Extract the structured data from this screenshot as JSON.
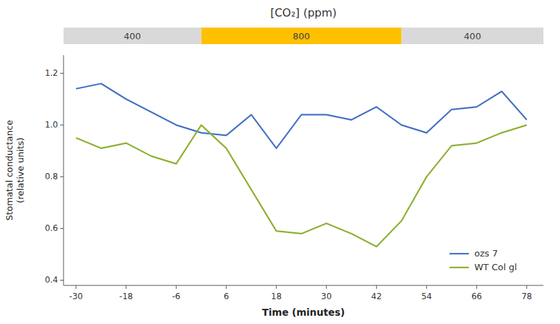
{
  "chart_data": {
    "type": "line",
    "title": "[CO₂] (ppm)",
    "x_label": "Time (minutes)",
    "y_label": "Stomatal conductance\n(relative units)",
    "x": [
      -30,
      -24,
      -18,
      -12,
      -6,
      0,
      6,
      12,
      18,
      24,
      30,
      36,
      42,
      48,
      54,
      60,
      66,
      72,
      78
    ],
    "series": [
      {
        "name": "ozs 7",
        "color": "#4472C4",
        "values": [
          1.14,
          1.16,
          1.1,
          1.05,
          1.0,
          0.97,
          0.96,
          1.04,
          0.91,
          1.04,
          1.04,
          1.02,
          1.07,
          1.0,
          0.97,
          1.06,
          1.07,
          1.13,
          1.02
        ]
      },
      {
        "name": "WT Col gl",
        "color": "#8DB030",
        "values": [
          0.95,
          0.91,
          0.93,
          0.88,
          0.85,
          1.0,
          0.91,
          0.75,
          0.59,
          0.58,
          0.62,
          0.58,
          0.53,
          0.63,
          0.8,
          0.92,
          0.93,
          0.97,
          1.0
        ]
      }
    ],
    "xlim": [
      -33,
      82
    ],
    "ylim": [
      0.38,
      1.27
    ],
    "xticks": [
      -30,
      -18,
      -6,
      6,
      18,
      30,
      42,
      54,
      66,
      78
    ],
    "yticks": [
      0.4,
      0.6,
      0.8,
      {
        "value": 1.0,
        "label": "1.0"
      },
      1.2
    ],
    "annotations": [
      {
        "text": "400",
        "x_start": -33,
        "x_end": 0,
        "color": "#d9d9d9"
      },
      {
        "text": "800",
        "x_start": 0,
        "x_end": 48,
        "color": "#FFC000"
      },
      {
        "text": "400",
        "x_start": 48,
        "x_end": 82,
        "color": "#d9d9d9"
      }
    ],
    "legend": "lower right",
    "grid": false
  }
}
